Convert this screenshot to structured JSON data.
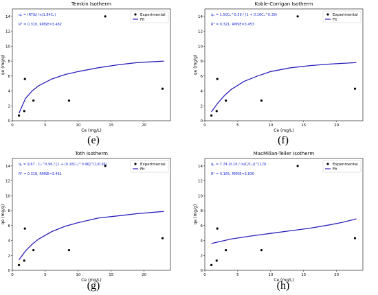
{
  "chart_data": [
    {
      "type": "scatter",
      "title": "Temkin Isotherm",
      "panel_label": "(e)",
      "xlabel": "Ce (mg/L)",
      "ylabel": "qe (mg/g)",
      "xlim": [
        0,
        24
      ],
      "ylim": [
        0,
        15
      ],
      "xticks": [
        0,
        5,
        10,
        15,
        20
      ],
      "yticks": [
        0,
        2,
        4,
        6,
        8,
        10,
        12,
        14
      ],
      "equation": "qₑ = (RT/b) ln(1.84Cₑ)",
      "stats": "R² = 0.310, RMSE=3.482",
      "legend": [
        "Experimental",
        "Fit"
      ],
      "legend_position": "top-right",
      "series": [
        {
          "name": "Experimental",
          "x": [
            1.0,
            1.8,
            1.9,
            3.2,
            8.6,
            14.1,
            22.8
          ],
          "y": [
            0.7,
            1.3,
            5.6,
            2.7,
            2.7,
            14.0,
            4.3
          ]
        },
        {
          "name": "Fit",
          "x": [
            1,
            2,
            3,
            4,
            6,
            8,
            10,
            13,
            16,
            19,
            23
          ],
          "y": [
            1.0,
            3.0,
            4.0,
            4.7,
            5.6,
            6.2,
            6.6,
            7.1,
            7.5,
            7.8,
            8.0
          ]
        }
      ]
    },
    {
      "type": "scatter",
      "title": "Koble-Corrigan Isotherm",
      "panel_label": "(f)",
      "xlabel": "Ce (mg/L)",
      "ylabel": "qe (mg/g)",
      "xlim": [
        0,
        24
      ],
      "ylim": [
        0,
        15
      ],
      "xticks": [
        0,
        5,
        10,
        15,
        20
      ],
      "yticks": [
        0,
        2,
        4,
        6,
        8,
        10,
        12,
        14
      ],
      "equation": "qₑ = 1.50Cₑ^0.39 / (1 + 0.16Cₑ^0.39)",
      "stats": "R² = 0.321, RMSE=3.453",
      "legend": [
        "Experimental",
        "Fit"
      ],
      "legend_position": "top-right",
      "series": [
        {
          "name": "Experimental",
          "x": [
            1.0,
            1.8,
            1.9,
            3.2,
            8.6,
            14.1,
            22.8
          ],
          "y": [
            0.7,
            1.3,
            5.6,
            2.7,
            2.7,
            14.0,
            4.3
          ]
        },
        {
          "name": "Fit",
          "x": [
            1,
            2,
            3,
            4,
            6,
            8,
            10,
            13,
            16,
            19,
            23
          ],
          "y": [
            1.2,
            2.4,
            3.4,
            4.2,
            5.3,
            6.0,
            6.6,
            7.1,
            7.4,
            7.6,
            7.8
          ]
        }
      ]
    },
    {
      "type": "scatter",
      "title": "Toth Isotherm",
      "panel_label": "(g)",
      "xlabel": "Ce (mg/L)",
      "ylabel": "qe (mg/g)",
      "xlim": [
        0,
        24
      ],
      "ylim": [
        0,
        15
      ],
      "xticks": [
        0,
        5,
        10,
        15,
        20
      ],
      "yticks": [
        0,
        2,
        4,
        6,
        8,
        10,
        12,
        14
      ],
      "equation": "qₑ = 9.67 · Cₑ^0.96 / [1 + (0.16Cₑ)^0.96]^(1/0.96)",
      "stats": "R² = 0.318, RMSE=3.461",
      "legend": [
        "Experimental",
        "Fit"
      ],
      "legend_position": "top-right",
      "series": [
        {
          "name": "Experimental",
          "x": [
            1.0,
            1.8,
            1.9,
            3.2,
            8.6,
            14.1,
            22.8
          ],
          "y": [
            0.7,
            1.3,
            5.6,
            2.7,
            2.7,
            14.0,
            4.3
          ]
        },
        {
          "name": "Fit",
          "x": [
            1,
            2,
            3,
            4,
            6,
            8,
            10,
            13,
            16,
            19,
            23
          ],
          "y": [
            1.4,
            2.6,
            3.5,
            4.2,
            5.2,
            5.9,
            6.4,
            7.0,
            7.3,
            7.6,
            7.9
          ]
        }
      ]
    },
    {
      "type": "scatter",
      "title": "MacMillan-Teller Isotherm",
      "panel_label": "(h)",
      "xlabel": "Ce (mg/L)",
      "ylabel": "qe (mg/g)",
      "xlim": [
        0,
        24
      ],
      "ylim": [
        0,
        15
      ],
      "xticks": [
        0,
        5,
        10,
        15,
        20
      ],
      "yticks": [
        0,
        2,
        4,
        6,
        8,
        10,
        12,
        14
      ],
      "equation": "qₑ = 7.74 (0.16 / ln(C/Cₑ))^(1/3)",
      "stats": "R² = 0.165, RMSE=3.830",
      "legend": [
        "Experimental",
        "Fit"
      ],
      "legend_position": "top-right",
      "series": [
        {
          "name": "Experimental",
          "x": [
            1.0,
            1.8,
            1.9,
            3.2,
            8.6,
            14.1,
            22.8
          ],
          "y": [
            0.7,
            1.3,
            5.6,
            2.7,
            2.7,
            14.0,
            4.3
          ]
        },
        {
          "name": "Fit",
          "x": [
            1,
            4,
            7,
            10,
            13,
            16,
            19,
            21,
            23
          ],
          "y": [
            3.6,
            4.2,
            4.6,
            4.95,
            5.3,
            5.65,
            6.1,
            6.45,
            6.9
          ]
        }
      ]
    }
  ]
}
